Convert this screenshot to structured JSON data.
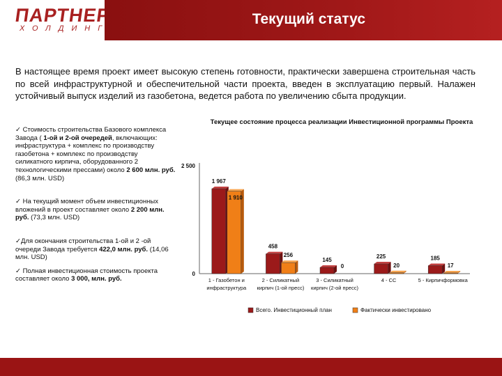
{
  "header": {
    "logo_main": "ПАРТНЕР",
    "logo_sub": "ХОЛДИНГ",
    "title": "Текущий статус"
  },
  "intro": "В настоящее время проект имеет высокую степень готовности, практически завершена строительная часть по всей инфраструктурной и обеспечительной части проекта, введен в эксплуатацию первый. Налажен устойчивый выпуск изделий из газобетона, ведется работа по увеличению сбыта продукции.",
  "bullets": [
    {
      "check": "✓",
      "parts": [
        {
          "t": " Стоимость строительства Базового комплекса Завода ( ",
          "b": false
        },
        {
          "t": "1-ой и 2-ой очередей",
          "b": true
        },
        {
          "t": ", включающих: инфраструктура + комплекс по производству газобетона + комплекс по производству силикатного кирпича, оборудованного 2 технологическими прессами) около ",
          "b": false
        },
        {
          "t": "2 600 млн. руб.",
          "b": true
        },
        {
          "t": " (86,3 млн. USD)",
          "b": false
        }
      ]
    },
    {
      "check": "✓",
      "parts": [
        {
          "t": " На текущий момент объем инвестиционных вложений в проект составляет около ",
          "b": false
        },
        {
          "t": "2 200 млн. руб.",
          "b": true
        },
        {
          "t": " (73,3 млн. USD)",
          "b": false
        }
      ]
    },
    {
      "check": "✓",
      "parts": [
        {
          "t": "Для окончания строительства 1-ой и 2 -ой очереди Завода требуется ",
          "b": false
        },
        {
          "t": "422,0 млн. руб.",
          "b": true
        },
        {
          "t": " (14,06 млн. USD)",
          "b": false
        }
      ]
    },
    {
      "check": "✓",
      "parts": [
        {
          "t": " Полная инвестиционная стоимость проекта составляет около ",
          "b": false
        },
        {
          "t": "3 000, млн. руб.",
          "b": true
        }
      ]
    }
  ],
  "chart_data": {
    "type": "bar",
    "title": "Текущее состояние процесса реализации Инвестиционной программы Проекта",
    "categories": [
      [
        "1 - Газобетон и",
        "инфраструктура"
      ],
      [
        "2 - Силикатный",
        "кирпич (1-ой пресс)"
      ],
      [
        "3 - Силикатный",
        "кирпич (2-ой пресс)"
      ],
      [
        "4 - СС",
        ""
      ],
      [
        "5 - Кирпичформовка",
        ""
      ]
    ],
    "series": [
      {
        "name": "Всего. Инвестиционный план",
        "values": [
          1967,
          458,
          145,
          225,
          185
        ],
        "color": "#9b1a1a"
      },
      {
        "name": "Фактически инвестировано",
        "values": [
          1910,
          256,
          0,
          20,
          17
        ],
        "color": "#f07f17"
      }
    ],
    "value_labels": [
      [
        "1 967",
        "458",
        "145",
        "225",
        "185"
      ],
      [
        "1 910",
        "256",
        "0",
        "20",
        "17"
      ]
    ],
    "y_ticks": [
      "0",
      "2 500"
    ],
    "ylim": [
      0,
      2500
    ],
    "grid": false,
    "legend": "bottom"
  }
}
